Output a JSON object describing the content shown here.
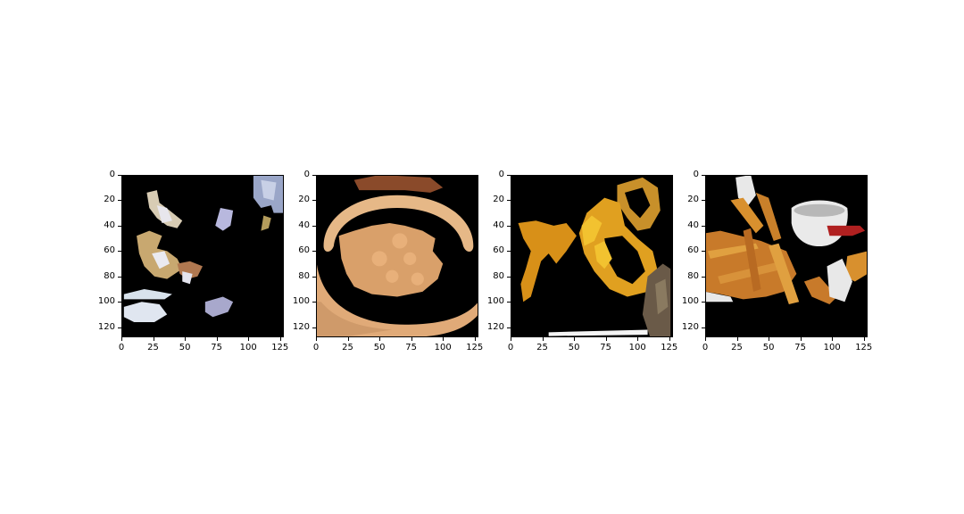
{
  "axes": {
    "x_ticks": [
      "0",
      "25",
      "50",
      "75",
      "100",
      "125"
    ],
    "y_ticks": [
      "0",
      "20",
      "40",
      "60",
      "80",
      "100",
      "120"
    ],
    "x_tick_values": [
      0,
      25,
      50,
      75,
      100,
      125
    ],
    "y_tick_values": [
      0,
      20,
      40,
      60,
      80,
      100,
      120
    ],
    "xlim": [
      0,
      128
    ],
    "ylim": [
      128,
      0
    ]
  },
  "panels": [
    {
      "subject": "scattered food and dish fragments",
      "colors": [
        "#d7c6a8",
        "#a8a8d8",
        "#e8e8f0"
      ]
    },
    {
      "subject": "bowl of soup with dumplings",
      "colors": [
        "#d9a06a",
        "#e6b887",
        "#8a4a2a"
      ]
    },
    {
      "subject": "fried battered pieces",
      "colors": [
        "#e0a020",
        "#f2c230",
        "#6a5a48"
      ]
    },
    {
      "subject": "french fries with ketchup cup",
      "colors": [
        "#c87a2a",
        "#e8e8e8",
        "#b02020"
      ]
    }
  ]
}
